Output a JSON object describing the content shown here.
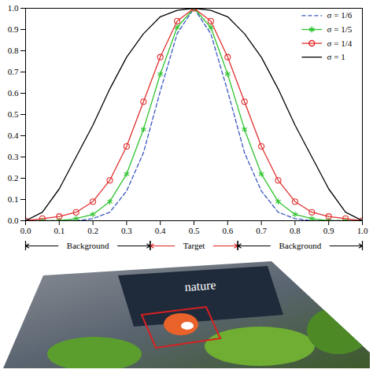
{
  "chart_data": {
    "type": "line",
    "x": [
      0,
      0.05,
      0.1,
      0.15,
      0.2,
      0.25,
      0.3,
      0.35,
      0.4,
      0.45,
      0.5,
      0.55,
      0.6,
      0.65,
      0.7,
      0.75,
      0.8,
      0.85,
      0.9,
      0.95,
      1
    ],
    "series": [
      {
        "name": "σ = 1/6",
        "color": "#3a57c0",
        "marker": "none",
        "line_style": "dashed",
        "values": [
          0,
          0,
          0,
          0,
          0.01,
          0.04,
          0.14,
          0.32,
          0.61,
          0.88,
          1,
          0.88,
          0.61,
          0.32,
          0.14,
          0.04,
          0.01,
          0,
          0,
          0,
          0
        ]
      },
      {
        "name": "σ = 1/5",
        "color": "#2fc42f",
        "marker": "asterisk",
        "line_style": "solid",
        "values": [
          0,
          0,
          0,
          0.01,
          0.03,
          0.09,
          0.22,
          0.43,
          0.69,
          0.91,
          1,
          0.91,
          0.69,
          0.43,
          0.22,
          0.09,
          0.03,
          0.01,
          0,
          0,
          0
        ]
      },
      {
        "name": "σ = 1/4",
        "color": "#e03030",
        "marker": "circle",
        "line_style": "solid",
        "values": [
          0,
          0.01,
          0.02,
          0.04,
          0.09,
          0.19,
          0.35,
          0.56,
          0.77,
          0.94,
          1,
          0.94,
          0.77,
          0.56,
          0.35,
          0.19,
          0.09,
          0.04,
          0.02,
          0.01,
          0
        ]
      },
      {
        "name": "σ = 1",
        "color": "#000000",
        "marker": "none",
        "line_style": "solid",
        "values": [
          0,
          0.04,
          0.15,
          0.3,
          0.45,
          0.62,
          0.77,
          0.88,
          0.96,
          0.99,
          1,
          0.99,
          0.96,
          0.88,
          0.77,
          0.62,
          0.45,
          0.3,
          0.15,
          0.04,
          0
        ]
      }
    ],
    "xlim": [
      0,
      1
    ],
    "ylim": [
      0,
      1
    ],
    "xticks": [
      0,
      0.1,
      0.2,
      0.3,
      0.4,
      0.5,
      0.6,
      0.7,
      0.8,
      0.9,
      1
    ],
    "yticks": [
      0,
      0.1,
      0.2,
      0.3,
      0.4,
      0.5,
      0.6,
      0.7,
      0.8,
      0.9,
      1
    ],
    "grid": false,
    "legend": "top-right",
    "regions": [
      {
        "label": "Background",
        "from": 0,
        "to": 0.37,
        "color": "#000000"
      },
      {
        "label": "Target",
        "from": 0.37,
        "to": 0.63,
        "color": "#e02020"
      },
      {
        "label": "Background",
        "from": 0.63,
        "to": 1,
        "color": "#000000"
      }
    ]
  },
  "photo": {
    "text": "nature"
  }
}
